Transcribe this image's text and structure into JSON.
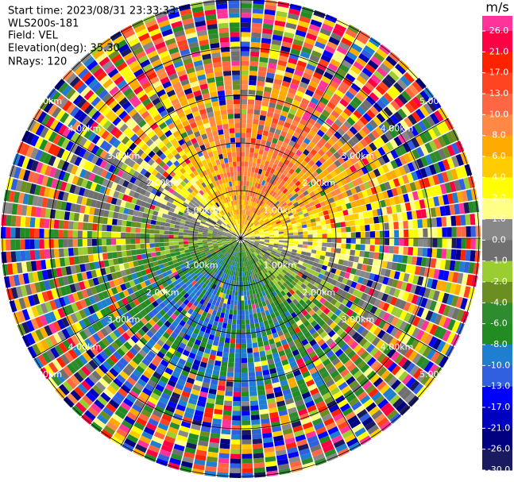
{
  "info": [
    "Start time: 2023/08/31 23:33:33",
    "WLS200s-181",
    "Field: VEL",
    "Elevation(deg): 35.30",
    "NRays: 120"
  ],
  "range_labels": [
    "1.00km",
    "2.00km",
    "3.00km",
    "4.00km",
    "5.00km"
  ],
  "colorbar": {
    "unit": "m/s",
    "ticks": [
      {
        "value": 26,
        "label": "26.0"
      },
      {
        "value": 21,
        "label": "21.0"
      },
      {
        "value": 17,
        "label": "17.0"
      },
      {
        "value": 13,
        "label": "13.0"
      },
      {
        "value": 10,
        "label": "10.0"
      },
      {
        "value": 8,
        "label": "8.0"
      },
      {
        "value": 6,
        "label": "6.0"
      },
      {
        "value": 4,
        "label": "4.0"
      },
      {
        "value": 2,
        "label": "2.0"
      },
      {
        "value": 1,
        "label": "1.0"
      },
      {
        "value": 0,
        "label": "0.0"
      },
      {
        "value": -1,
        "label": "-1.0"
      },
      {
        "value": -2,
        "label": "-2.0"
      },
      {
        "value": -4,
        "label": "-4.0"
      },
      {
        "value": -6,
        "label": "-6.0"
      },
      {
        "value": -8,
        "label": "-8.0"
      },
      {
        "value": -10,
        "label": "-10.0"
      },
      {
        "value": -13,
        "label": "-13.0"
      },
      {
        "value": -17,
        "label": "-17.0"
      },
      {
        "value": -21,
        "label": "-21.0"
      },
      {
        "value": -26,
        "label": "-26.0"
      },
      {
        "value": -30,
        "label": "-30.0"
      }
    ],
    "colors": [
      "#ff3399",
      "#ff0044",
      "#ff2200",
      "#ff4422",
      "#ff6644",
      "#ff8844",
      "#ffaa00",
      "#ffcc00",
      "#ffff00",
      "#ffff88",
      "#888888",
      "#707070",
      "#9acd32",
      "#6b8e23",
      "#2e8b2e",
      "#228b22",
      "#1e7fd0",
      "#3060e0",
      "#0000ff",
      "#0000c0",
      "#000080",
      "#1a1a60"
    ]
  }
}
